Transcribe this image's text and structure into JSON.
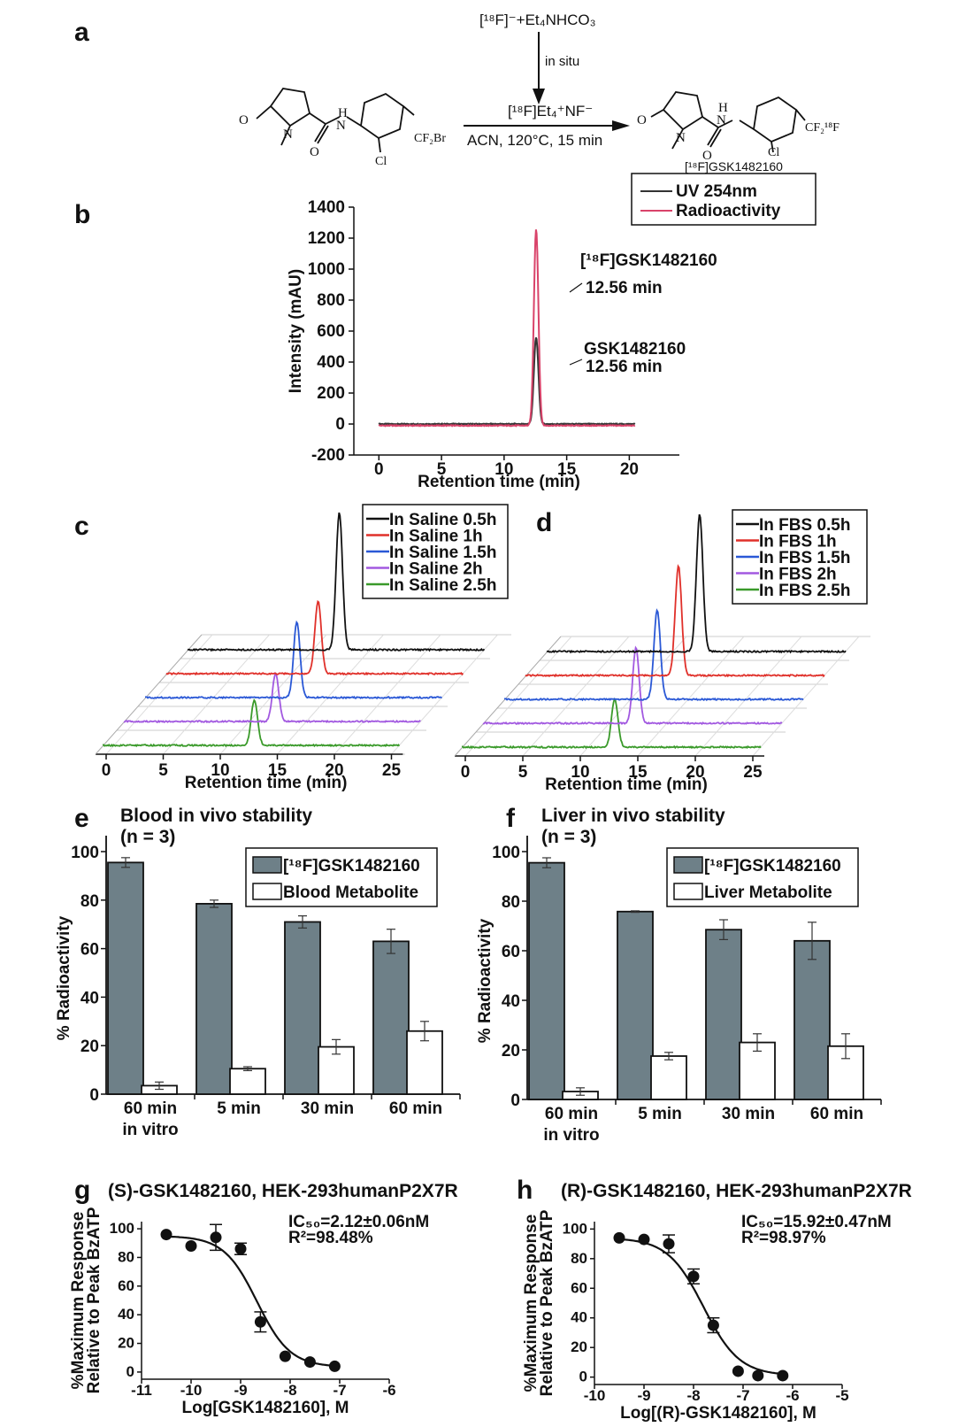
{
  "panels": {
    "a": {
      "label": "a",
      "reagent_top": "[¹⁸F]⁻+Et₄NHCO₃",
      "in_situ": "in situ",
      "reagent": "[¹⁸F]Et₄⁺NF⁻",
      "conditions": "ACN, 120°C, 15 min",
      "product_name": "[¹⁸F]GSK1482160",
      "precursor_group": "CF₂Br",
      "product_group": "CF₂¹⁸F",
      "atoms": {
        "O": "O",
        "N": "N",
        "H": "H",
        "Cl": "Cl"
      }
    },
    "b": {
      "label": "b"
    },
    "c": {
      "label": "c"
    },
    "d": {
      "label": "d"
    },
    "e": {
      "label": "e"
    },
    "f": {
      "label": "f"
    },
    "g": {
      "label": "g"
    },
    "h": {
      "label": "h"
    }
  },
  "chart_data": [
    {
      "id": "b",
      "type": "line",
      "xlabel": "Retention time (min)",
      "ylabel": "Intensity (mAU)",
      "xlim": [
        -2,
        24
      ],
      "ylim": [
        -200,
        1400
      ],
      "xticks": [
        0,
        5,
        10,
        15,
        20
      ],
      "yticks": [
        -200,
        0,
        200,
        400,
        600,
        800,
        1000,
        1200,
        1400
      ],
      "legend": "top-right",
      "series": [
        {
          "name": "UV 254nm",
          "color": "#333333",
          "baseline": 0,
          "peak_x": 12.56,
          "peak_y": 560,
          "x_end": 20.5
        },
        {
          "name": "Radioactivity",
          "color": "#d9436a",
          "baseline": -10,
          "peak_x": 12.56,
          "peak_y": 1270,
          "x_end": 20.5
        }
      ],
      "annotations": [
        {
          "line1": "[¹⁸F]GSK1482160",
          "line2": "12.56 min"
        },
        {
          "line1": "GSK1482160",
          "line2": "12.56 min"
        }
      ]
    },
    {
      "id": "c",
      "type": "line",
      "xlabel": "Retention time (min)",
      "xticks": [
        0,
        5,
        10,
        15,
        20,
        25
      ],
      "legend": "top-right",
      "series": [
        {
          "name": "In Saline 0.5h",
          "color": "#111111",
          "peak_x": 13.3,
          "height": 1.0
        },
        {
          "name": "In Saline 1h",
          "color": "#e0302a",
          "peak_x": 13.3,
          "height": 0.53
        },
        {
          "name": "In Saline 1.5h",
          "color": "#2a58d6",
          "peak_x": 13.3,
          "height": 0.55
        },
        {
          "name": "In Saline 2h",
          "color": "#a259e0",
          "peak_x": 13.3,
          "height": 0.35
        },
        {
          "name": "In Saline 2.5h",
          "color": "#3a9a2a",
          "peak_x": 13.3,
          "height": 0.33
        }
      ]
    },
    {
      "id": "d",
      "type": "line",
      "xlabel": "Retention time (min)",
      "xticks": [
        0,
        5,
        10,
        15,
        20,
        25
      ],
      "legend": "top-right",
      "series": [
        {
          "name": "In FBS 0.5h",
          "color": "#111111",
          "peak_x": 13.3,
          "height": 1.0
        },
        {
          "name": "In FBS 1h",
          "color": "#e0302a",
          "peak_x": 13.3,
          "height": 0.8
        },
        {
          "name": "In FBS 1.5h",
          "color": "#2a58d6",
          "peak_x": 13.3,
          "height": 0.65
        },
        {
          "name": "In FBS 2h",
          "color": "#a259e0",
          "peak_x": 13.3,
          "height": 0.55
        },
        {
          "name": "In FBS 2.5h",
          "color": "#3a9a2a",
          "peak_x": 13.3,
          "height": 0.35
        }
      ]
    },
    {
      "id": "e",
      "type": "bar",
      "title": "Blood in vivo  stability",
      "subtitle": "(n = 3)",
      "ylabel": "% Radioactivity",
      "ylim": [
        0,
        100
      ],
      "yticks": [
        0,
        20,
        40,
        60,
        80,
        100
      ],
      "categories": [
        [
          "60 min",
          "in vitro"
        ],
        [
          "5 min"
        ],
        [
          "30 min"
        ],
        [
          "60 min"
        ]
      ],
      "legend": "top-right",
      "series": [
        {
          "name": "[¹⁸F]GSK1482160",
          "color": "#6e8088",
          "values": [
            95.5,
            78.5,
            71,
            63
          ],
          "errors": [
            2,
            1.5,
            2.5,
            5
          ]
        },
        {
          "name": "Blood Metabolite",
          "color": "#ffffff",
          "values": [
            3.5,
            10.5,
            19.5,
            26
          ],
          "errors": [
            1.5,
            0.8,
            3,
            4
          ]
        }
      ]
    },
    {
      "id": "f",
      "type": "bar",
      "title": "Liver in vivo  stability",
      "subtitle": "(n = 3)",
      "ylabel": "% Radioactivity",
      "ylim": [
        0,
        100
      ],
      "yticks": [
        0,
        20,
        40,
        60,
        80,
        100
      ],
      "categories": [
        [
          "60 min",
          "in vitro"
        ],
        [
          "5 min"
        ],
        [
          "30 min"
        ],
        [
          "60 min"
        ]
      ],
      "legend": "top-right",
      "series": [
        {
          "name": "[¹⁸F]GSK1482160",
          "color": "#6e8088",
          "values": [
            95.5,
            75.8,
            68.5,
            64
          ],
          "errors": [
            2,
            0.3,
            4,
            7.5
          ]
        },
        {
          "name": "Liver Metabolite",
          "color": "#ffffff",
          "values": [
            3.2,
            17.5,
            23,
            21.5
          ],
          "errors": [
            1.5,
            1.5,
            3.5,
            5
          ]
        }
      ]
    },
    {
      "id": "g",
      "type": "scatter",
      "title": "(S)-GSK1482160, HEK-293humanP2X7R",
      "xlabel": "Log[GSK1482160], M",
      "ylabel": [
        "%Maximum Response",
        "Relative to Peak BzATP"
      ],
      "xlim": [
        -11,
        -6
      ],
      "ylim": [
        -5,
        105
      ],
      "xticks": [
        -11,
        -10,
        -9,
        -8,
        -7,
        -6
      ],
      "yticks": [
        0,
        20,
        40,
        60,
        80,
        100
      ],
      "annotation": [
        "IC₅₀=2.12±0.06nM",
        "R²=98.48%"
      ],
      "curve": {
        "top": 95,
        "bottom": 3.5,
        "logIC50": -8.67,
        "hill": 1.3
      },
      "points": [
        {
          "x": -10.5,
          "y": 96,
          "err": 0
        },
        {
          "x": -10.0,
          "y": 88,
          "err": 0
        },
        {
          "x": -9.5,
          "y": 94,
          "err": 9
        },
        {
          "x": -9.0,
          "y": 86,
          "err": 4
        },
        {
          "x": -8.6,
          "y": 35,
          "err": 7
        },
        {
          "x": -8.1,
          "y": 11,
          "err": 0
        },
        {
          "x": -7.6,
          "y": 7,
          "err": 0
        },
        {
          "x": -7.1,
          "y": 4,
          "err": 0
        }
      ]
    },
    {
      "id": "h",
      "type": "scatter",
      "title": "(R)-GSK1482160, HEK-293humanP2X7R",
      "xlabel": "Log[(R)-GSK1482160], M",
      "ylabel": [
        "%Maximum Response",
        "Relative to Peak BzATP"
      ],
      "xlim": [
        -10,
        -5
      ],
      "ylim": [
        -5,
        105
      ],
      "xticks": [
        -10,
        -9,
        -8,
        -7,
        -6,
        -5
      ],
      "yticks": [
        0,
        20,
        40,
        60,
        80,
        100
      ],
      "annotation": [
        "IC₅₀=15.92±0.47nM",
        "R²=98.97%"
      ],
      "curve": {
        "top": 94,
        "bottom": 1,
        "logIC50": -7.8,
        "hill": 1.2
      },
      "points": [
        {
          "x": -9.5,
          "y": 94,
          "err": 0
        },
        {
          "x": -9.0,
          "y": 93,
          "err": 0
        },
        {
          "x": -8.5,
          "y": 90,
          "err": 6
        },
        {
          "x": -8.0,
          "y": 68,
          "err": 5
        },
        {
          "x": -7.6,
          "y": 35,
          "err": 5
        },
        {
          "x": -7.1,
          "y": 4,
          "err": 0
        },
        {
          "x": -6.7,
          "y": 1,
          "err": 0
        },
        {
          "x": -6.2,
          "y": 1,
          "err": 0
        }
      ]
    }
  ]
}
